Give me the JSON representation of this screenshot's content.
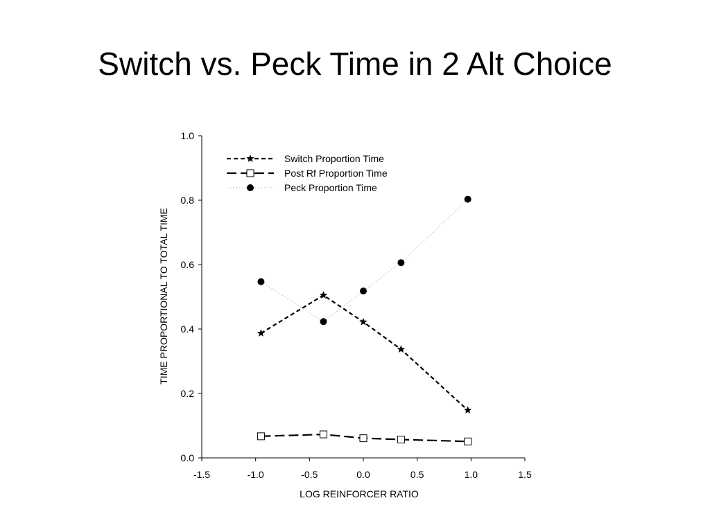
{
  "slide": {
    "title": "Switch vs. Peck Time in 2 Alt Choice"
  },
  "chart_data": {
    "type": "line",
    "title": "",
    "xlabel": "LOG REINFORCER RATIO",
    "ylabel": "TIME PROPORTIONAL TO TOTAL TIME",
    "xlim": [
      -1.5,
      1.5
    ],
    "ylim": [
      0.0,
      1.0
    ],
    "xticks": [
      -1.5,
      -1.0,
      -0.5,
      0.0,
      0.5,
      1.0,
      1.5
    ],
    "xtick_labels": [
      "-1.5",
      "-1.0",
      "-0.5",
      "0.0",
      "0.5",
      "1.0",
      "1.5"
    ],
    "yticks": [
      0.0,
      0.2,
      0.4,
      0.6,
      0.8,
      1.0
    ],
    "ytick_labels": [
      "0.0",
      "0.2",
      "0.4",
      "0.6",
      "0.8",
      "1.0"
    ],
    "grid": false,
    "legend_position": "top-left",
    "x": [
      -0.95,
      -0.37,
      0.0,
      0.35,
      0.97
    ],
    "series": [
      {
        "name": "Switch Proportion Time",
        "marker": "star",
        "line": "short-dash",
        "color": "#000000",
        "values": [
          0.387,
          0.505,
          0.422,
          0.337,
          0.148
        ]
      },
      {
        "name": "Post Rf Proportion Time",
        "marker": "open-square",
        "line": "long-dash",
        "color": "#000000",
        "values": [
          0.067,
          0.073,
          0.061,
          0.057,
          0.051
        ]
      },
      {
        "name": "Peck Proportion Time",
        "marker": "filled-circle",
        "line": "dotted",
        "color": "#c8c8c8",
        "values": [
          0.547,
          0.423,
          0.518,
          0.606,
          0.803
        ]
      }
    ]
  }
}
